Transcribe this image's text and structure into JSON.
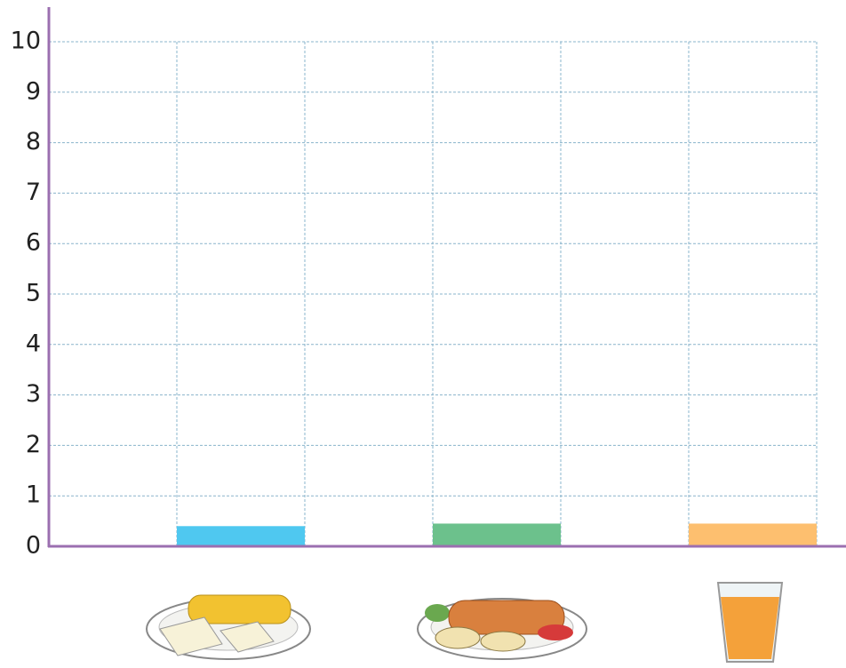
{
  "chart_data": {
    "type": "bar",
    "categories": [
      null,
      null,
      null
    ],
    "values": [
      0.4,
      0.45,
      0.45
    ],
    "colors": [
      "#4fc8f0",
      "#6cc18c",
      "#fdbf6f"
    ],
    "ylim": [
      0,
      10
    ],
    "yticks": [
      0,
      1,
      2,
      3,
      4,
      5,
      6,
      7,
      8,
      9,
      10
    ],
    "grid": true
  }
}
